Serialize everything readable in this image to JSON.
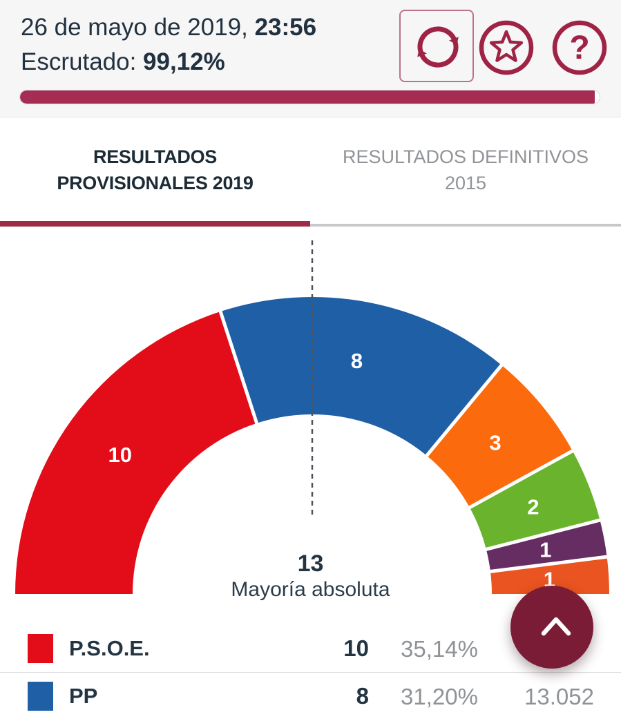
{
  "header": {
    "date_prefix": "26 de mayo de 2019, ",
    "time": "23:56",
    "escrutado_label": "Escrutado: ",
    "escrutado_value": "99,12%",
    "progress_percent": 99.12,
    "buttons": [
      {
        "name": "refresh",
        "icon": "refresh-icon"
      },
      {
        "name": "favorite",
        "icon": "star-icon"
      },
      {
        "name": "help",
        "icon": "question-icon"
      }
    ]
  },
  "tabs": [
    {
      "line1": "RESULTADOS",
      "line2": "PROVISIONALES 2019",
      "active": true
    },
    {
      "line1": "RESULTADOS DEFINITIVOS",
      "line2": "2015",
      "active": false
    }
  ],
  "chart_data": {
    "type": "hemicycle-donut",
    "total_seats": 25,
    "majority_seats_label": "13",
    "majority_text": "Mayoría absoluta",
    "segments": [
      {
        "party": "P.S.O.E.",
        "seats": 10,
        "color": "#e20d18"
      },
      {
        "party": "PP",
        "seats": 8,
        "color": "#1f5fa6"
      },
      {
        "party": "",
        "seats": 3,
        "color": "#fb6a0c"
      },
      {
        "party": "",
        "seats": 2,
        "color": "#6ab32c"
      },
      {
        "party": "",
        "seats": 1,
        "color": "#662d62"
      },
      {
        "party": "",
        "seats": 1,
        "color": "#e95420"
      }
    ]
  },
  "results_table": {
    "rows": [
      {
        "party": "P.S.O.E.",
        "color": "#e20d18",
        "seats": "10",
        "percent": "35,14%",
        "votes": "",
        "votes_hidden_behind_button": true
      },
      {
        "party": "PP",
        "color": "#1f5fa6",
        "seats": "8",
        "percent": "31,20%",
        "votes": "13.052"
      }
    ]
  },
  "fab": {
    "icon": "chevron-up-icon"
  },
  "colors": {
    "accent_icons": "#9e2345",
    "progress_fill": "#a52c52",
    "tab_underline_active": "#9e2c49",
    "tab_underline_inactive": "#c8c8ca",
    "fab_background": "#7b1c36",
    "header_background": "#f6f6f7",
    "text_dark": "#233442",
    "text_gray": "#8f9296",
    "dashed_line": "#4b545c"
  }
}
